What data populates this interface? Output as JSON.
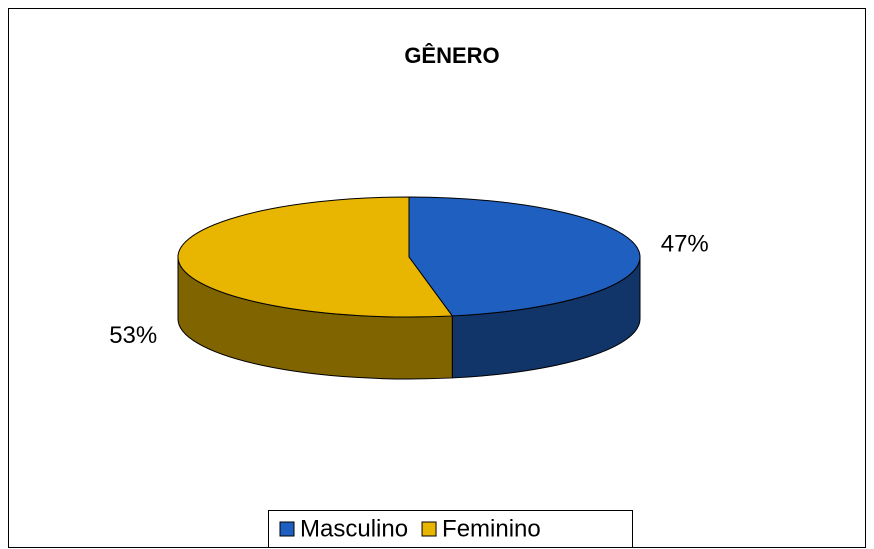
{
  "chart_data": {
    "type": "pie",
    "title": "GÊNERO",
    "categories": [
      "Masculino",
      "Feminino"
    ],
    "values": [
      47,
      53
    ],
    "value_labels": [
      "47%",
      "53%"
    ],
    "colors": [
      "#1f5fc0",
      "#e8b600"
    ],
    "legend": "bottom"
  }
}
